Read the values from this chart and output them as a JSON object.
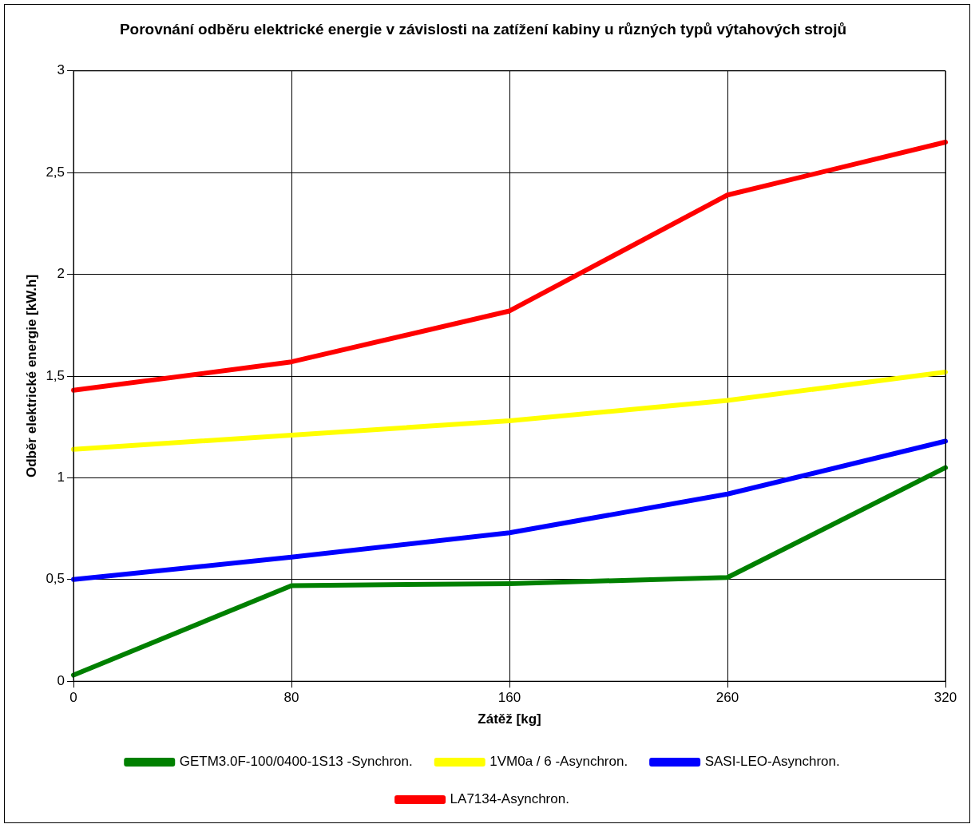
{
  "chart_data": {
    "type": "line",
    "title": "Porovnání odběru elektrické energie v závislosti na zatížení kabiny u různých typů výtahových strojů",
    "xlabel": "Zátěž [kg]",
    "ylabel": "Odběr elektrické energie [kW.h]",
    "categories": [
      "0",
      "80",
      "160",
      "260",
      "320"
    ],
    "series": [
      {
        "name": "GETM3.0F-100/0400-1S13 -Synchron.",
        "color": "#008000",
        "values": [
          0.03,
          0.47,
          0.48,
          0.51,
          1.05
        ]
      },
      {
        "name": "1VM0a / 6 -Asynchron.",
        "color": "#ffff00",
        "values": [
          1.14,
          1.21,
          1.28,
          1.38,
          1.52
        ]
      },
      {
        "name": "SASI-LEO-Asynchron.",
        "color": "#0000ff",
        "values": [
          0.5,
          0.61,
          0.73,
          0.92,
          1.18
        ]
      },
      {
        "name": "LA7134-Asynchron.",
        "color": "#ff0000",
        "values": [
          1.43,
          1.57,
          1.82,
          2.39,
          2.65
        ]
      }
    ],
    "ylim": [
      0,
      3
    ],
    "yticks": [
      0,
      {
        "value": 0.5,
        "label": "0,5"
      },
      1,
      {
        "value": 1.5,
        "label": "1,5"
      },
      2,
      {
        "value": 2.5,
        "label": "2,5"
      },
      3
    ],
    "grid": true,
    "legend": "bottom",
    "marker": "none",
    "line_style": "solid"
  }
}
